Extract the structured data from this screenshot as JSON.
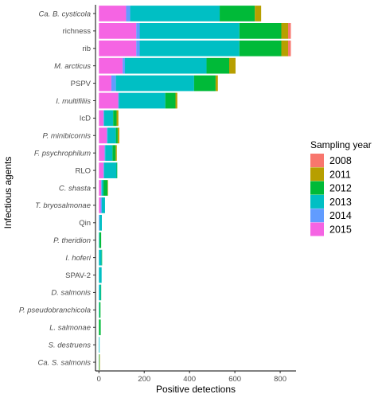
{
  "chart_data": {
    "type": "bar",
    "orientation": "horizontal",
    "stacked": true,
    "xlabel": "Positive detections",
    "ylabel": "Infectious agents",
    "xlim": [
      -15,
      870
    ],
    "xticks": [
      0,
      200,
      400,
      600,
      800
    ],
    "grid": false,
    "legend_title": "Sampling year",
    "legend_position": "right",
    "categories": [
      "Ca. B. cysticola",
      "richness",
      "rib",
      "M. arcticus",
      "PSPV",
      "I. multifiliis",
      "IcD",
      "P. minibicornis",
      "F. psychrophilum",
      "RLO",
      "C. shasta",
      "T. bryosalmonae",
      "Qin",
      "P. theridion",
      "I. hoferi",
      "SPAV-2",
      "D. salmonis",
      "P. pseudobranchicola",
      "L. salmonae",
      "S. destruens",
      "Ca. S. salmonis"
    ],
    "italic": [
      true,
      false,
      false,
      true,
      false,
      true,
      false,
      true,
      true,
      false,
      true,
      true,
      false,
      true,
      true,
      false,
      true,
      true,
      true,
      true,
      true
    ],
    "series": [
      {
        "name": "2015",
        "color": "#F564E3",
        "values": [
          120,
          165,
          165,
          105,
          55,
          85,
          20,
          35,
          25,
          20,
          10,
          8,
          0,
          0,
          0,
          0,
          0,
          0,
          0,
          0,
          0
        ]
      },
      {
        "name": "2014",
        "color": "#619CFF",
        "values": [
          18,
          15,
          15,
          10,
          20,
          3,
          3,
          3,
          3,
          3,
          2,
          5,
          3,
          0,
          0,
          0,
          0,
          0,
          0,
          0,
          0
        ]
      },
      {
        "name": "2013",
        "color": "#00BFC4",
        "values": [
          395,
          440,
          440,
          360,
          345,
          205,
          40,
          37,
          32,
          55,
          8,
          14,
          10,
          3,
          12,
          12,
          8,
          2,
          0,
          3,
          1
        ]
      },
      {
        "name": "2012",
        "color": "#00BA38",
        "values": [
          155,
          185,
          185,
          100,
          95,
          45,
          15,
          8,
          14,
          3,
          18,
          0,
          0,
          7,
          2,
          0,
          2,
          5,
          8,
          0,
          1
        ]
      },
      {
        "name": "2011",
        "color": "#B79F00",
        "values": [
          28,
          30,
          30,
          28,
          10,
          8,
          8,
          7,
          5,
          0,
          2,
          0,
          0,
          0,
          0,
          0,
          0,
          0,
          0,
          0,
          1
        ]
      },
      {
        "name": "2008",
        "color": "#F8766D",
        "values": [
          0,
          12,
          12,
          0,
          0,
          0,
          0,
          0,
          0,
          0,
          0,
          0,
          0,
          0,
          0,
          0,
          0,
          0,
          0,
          0,
          0
        ]
      }
    ],
    "legend_order": [
      "2008",
      "2011",
      "2012",
      "2013",
      "2014",
      "2015"
    ]
  }
}
